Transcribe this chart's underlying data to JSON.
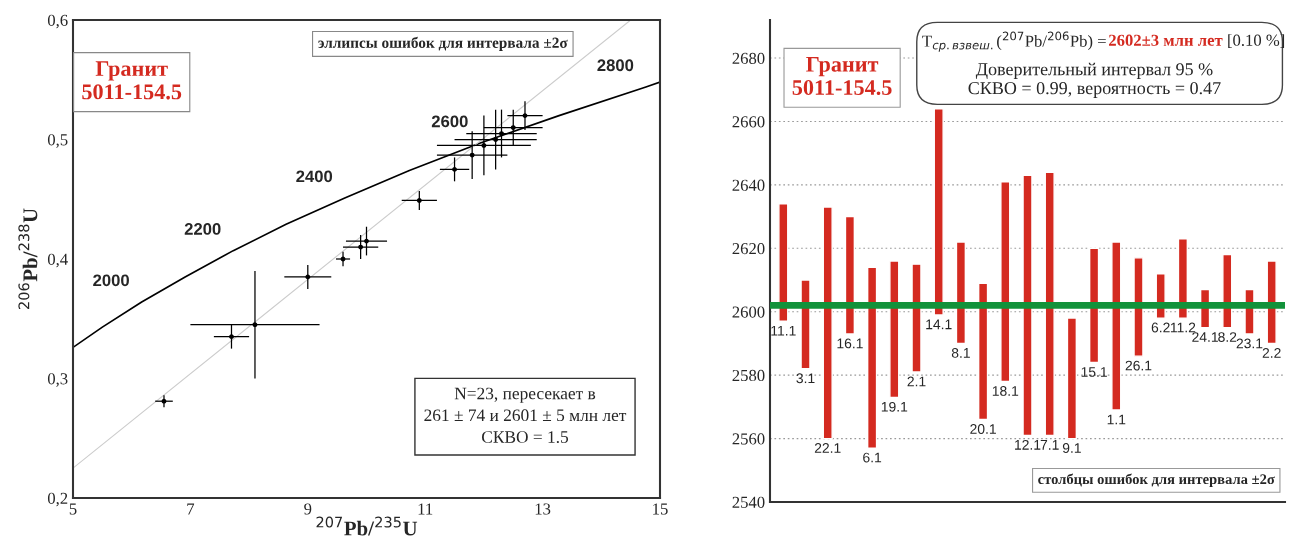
{
  "chart_data": [
    {
      "type": "scatter",
      "xlabel": "$^{207}$Pb/$^{235}$U",
      "ylabel": "$^{206}$Pb/$^{238}$U",
      "xlim": [
        5,
        15
      ],
      "xticks": [
        5,
        7,
        9,
        11,
        13,
        15
      ],
      "ylim": [
        0.2,
        0.6
      ],
      "yticks": [
        {
          "value": 0.2,
          "label": "0,2"
        },
        {
          "value": 0.3,
          "label": "0,3"
        },
        {
          "value": 0.4,
          "label": "0,4"
        },
        {
          "value": 0.5,
          "label": "0,5"
        },
        {
          "value": 0.6,
          "label": "0,6"
        }
      ],
      "grid": false,
      "legend": false,
      "series": [
        {
          "type": "line",
          "color": "#000000",
          "x": [
            5.0,
            5.5,
            6.17,
            6.91,
            7.73,
            8.63,
            9.63,
            10.73,
            11.94,
            13.28,
            14.76,
            15.0
          ],
          "values": [
            0.326,
            0.343,
            0.364,
            0.385,
            0.407,
            0.429,
            0.451,
            0.474,
            0.497,
            0.52,
            0.544,
            0.548
          ]
        },
        {
          "type": "line",
          "color": "#cccccc",
          "x": [
            5.0,
            14.5
          ],
          "values": [
            0.225,
            0.6
          ]
        },
        {
          "type": "scatter",
          "color": "#000000",
          "marker": "circle",
          "x": [
            6.55,
            7.7,
            8.1,
            9.0,
            9.6,
            9.9,
            10.0,
            10.9,
            11.5,
            11.8,
            12.0,
            12.2,
            12.3,
            12.5,
            12.7
          ],
          "values": [
            0.281,
            0.335,
            0.345,
            0.385,
            0.4,
            0.41,
            0.415,
            0.449,
            0.475,
            0.487,
            0.495,
            0.5,
            0.505,
            0.51,
            0.52
          ],
          "xerrors": [
            0.15,
            0.3,
            1.1,
            0.4,
            0.12,
            0.3,
            0.35,
            0.3,
            0.25,
            0.6,
            0.8,
            0.7,
            0.6,
            0.5,
            0.3
          ],
          "errors": [
            0.005,
            0.01,
            0.045,
            0.01,
            0.006,
            0.01,
            0.012,
            0.008,
            0.01,
            0.02,
            0.025,
            0.025,
            0.02,
            0.015,
            0.012
          ]
        }
      ],
      "annotations": [
        {
          "text": "2000",
          "x": 6.17,
          "y": 0.364
        },
        {
          "text": "2200",
          "x": 7.73,
          "y": 0.407
        },
        {
          "text": "2400",
          "x": 9.63,
          "y": 0.451
        },
        {
          "text": "2600",
          "x": 11.94,
          "y": 0.497
        },
        {
          "text": "2800",
          "x": 14.76,
          "y": 0.544
        },
        "Гранит\n5011-154.5",
        "эллипсы ошибок для интервала ±2σ",
        "N=23, пересекает в\n261 ± 74 и 2601 ± 5 млн лет\nСКВО = 1.5"
      ]
    },
    {
      "type": "bar",
      "categories": [
        "11.1",
        "3.1",
        "22.1",
        "16.1",
        "6.1",
        "19.1",
        "2.1",
        "14.1",
        "8.1",
        "20.1",
        "18.1",
        "12.1",
        "7.1",
        "9.1",
        "15.1",
        "1.1",
        "26.1",
        "6.2",
        "11.2",
        "24.1",
        "8.2",
        "23.1",
        "2.2"
      ],
      "base": [
        2597,
        2582,
        2560,
        2593,
        2557,
        2573,
        2581,
        2599,
        2590,
        2566,
        2578,
        2561,
        2561,
        2560,
        2584,
        2569,
        2586,
        2598,
        2598,
        2595,
        2595,
        2593,
        2590
      ],
      "values": [
        37,
        28,
        73,
        37,
        57,
        43,
        34,
        65,
        32,
        43,
        63,
        82,
        83,
        38,
        36,
        53,
        31,
        14,
        25,
        12,
        23,
        14,
        26
      ],
      "color": "#d42a20",
      "ylim": [
        2540,
        2692
      ],
      "yticks": [
        2540,
        2560,
        2580,
        2600,
        2620,
        2640,
        2660,
        2680
      ],
      "grid": "y",
      "legend": false,
      "ref_lines": [
        {
          "axis": "y",
          "value": 2602,
          "color": "#12923a"
        }
      ],
      "annotations": [
        "Гранит\n5011-154.5",
        "T$_{ср.взвеш.}$($^{207}$Pb/$^{206}$Pb) = ",
        "2602±3 млн лет",
        " [0.10 %]",
        "Доверительный интервал 95 %",
        "СКВО = 0.99, вероятность = 0.47",
        "столбцы ошибок для интервала ±2σ"
      ]
    }
  ]
}
